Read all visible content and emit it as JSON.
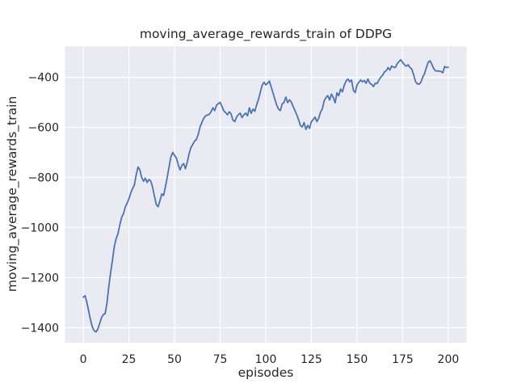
{
  "chart_data": {
    "type": "line",
    "title": "moving_average_rewards_train of DDPG",
    "xlabel": "episodes",
    "ylabel": "moving_average_rewards_train",
    "xlim": [
      -10,
      210
    ],
    "ylim": [
      -1460,
      -277
    ],
    "grid": true,
    "legend": false,
    "x_tick_values": [
      0,
      25,
      50,
      75,
      100,
      125,
      150,
      175,
      200
    ],
    "x_tick_labels": [
      "0",
      "25",
      "50",
      "75",
      "100",
      "125",
      "150",
      "175",
      "200"
    ],
    "y_tick_values": [
      -400,
      -600,
      -800,
      -1000,
      -1200,
      -1400
    ],
    "y_tick_labels": [
      "−400",
      "−600",
      "−800",
      "−1000",
      "−1200",
      "−1400"
    ],
    "plot_bg_color": "#eaeaf2",
    "grid_color": "#ffffff",
    "text_color": "#262626",
    "line_color": "#4c72b0",
    "series": [
      {
        "name": "moving_average_rewards_train",
        "x_start": 0,
        "x_step": 1,
        "values": [
          -1278,
          -1272,
          -1300,
          -1335,
          -1370,
          -1398,
          -1412,
          -1417,
          -1405,
          -1383,
          -1360,
          -1347,
          -1344,
          -1300,
          -1235,
          -1180,
          -1130,
          -1076,
          -1045,
          -1025,
          -990,
          -960,
          -945,
          -918,
          -903,
          -886,
          -862,
          -845,
          -830,
          -790,
          -758,
          -770,
          -800,
          -815,
          -803,
          -820,
          -808,
          -815,
          -840,
          -875,
          -908,
          -917,
          -893,
          -866,
          -872,
          -838,
          -800,
          -758,
          -718,
          -700,
          -712,
          -722,
          -748,
          -770,
          -752,
          -745,
          -765,
          -738,
          -705,
          -680,
          -668,
          -655,
          -648,
          -628,
          -598,
          -580,
          -564,
          -554,
          -551,
          -548,
          -538,
          -522,
          -533,
          -512,
          -505,
          -500,
          -516,
          -534,
          -541,
          -550,
          -538,
          -546,
          -571,
          -577,
          -559,
          -549,
          -543,
          -561,
          -550,
          -543,
          -554,
          -522,
          -544,
          -527,
          -536,
          -510,
          -488,
          -460,
          -432,
          -420,
          -430,
          -424,
          -415,
          -440,
          -463,
          -488,
          -511,
          -527,
          -533,
          -506,
          -501,
          -479,
          -501,
          -490,
          -499,
          -517,
          -533,
          -550,
          -570,
          -593,
          -598,
          -581,
          -608,
          -592,
          -604,
          -577,
          -569,
          -559,
          -577,
          -564,
          -539,
          -526,
          -494,
          -481,
          -473,
          -491,
          -467,
          -481,
          -502,
          -462,
          -474,
          -447,
          -458,
          -432,
          -415,
          -407,
          -418,
          -411,
          -452,
          -461,
          -431,
          -420,
          -411,
          -418,
          -413,
          -424,
          -407,
          -424,
          -428,
          -437,
          -424,
          -425,
          -411,
          -400,
          -392,
          -379,
          -374,
          -361,
          -371,
          -355,
          -360,
          -361,
          -346,
          -337,
          -330,
          -341,
          -350,
          -356,
          -350,
          -361,
          -367,
          -389,
          -416,
          -426,
          -428,
          -420,
          -400,
          -385,
          -361,
          -340,
          -334,
          -348,
          -365,
          -374,
          -375,
          -375,
          -377,
          -382,
          -357,
          -361,
          -360
        ]
      }
    ]
  }
}
